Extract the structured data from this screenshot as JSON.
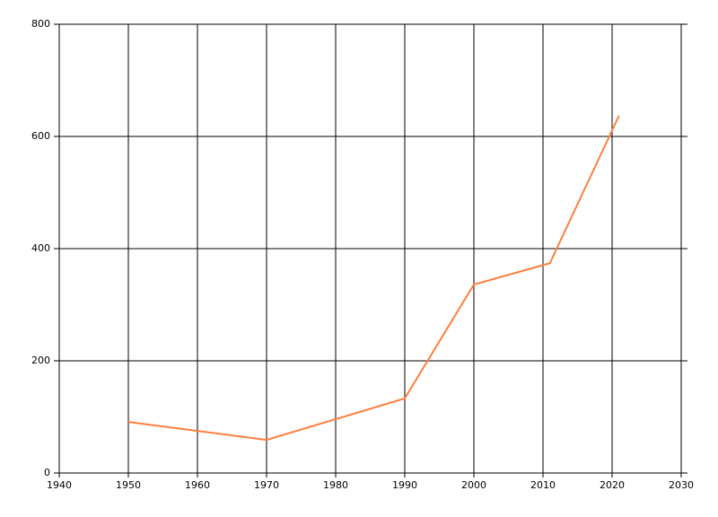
{
  "chart_data": {
    "type": "line",
    "x": [
      1950,
      1970,
      1990,
      2000,
      2011,
      2021
    ],
    "values": [
      91,
      59,
      133,
      336,
      374,
      637
    ],
    "color": "#ff7f3f",
    "xlim": [
      1940,
      2030
    ],
    "xticks": [
      1940,
      1950,
      1960,
      1970,
      1980,
      1990,
      2000,
      2010,
      2020,
      2030
    ],
    "ylim": [
      0,
      800
    ],
    "yticks": [
      0,
      200,
      400,
      600,
      800
    ],
    "grid": true
  }
}
